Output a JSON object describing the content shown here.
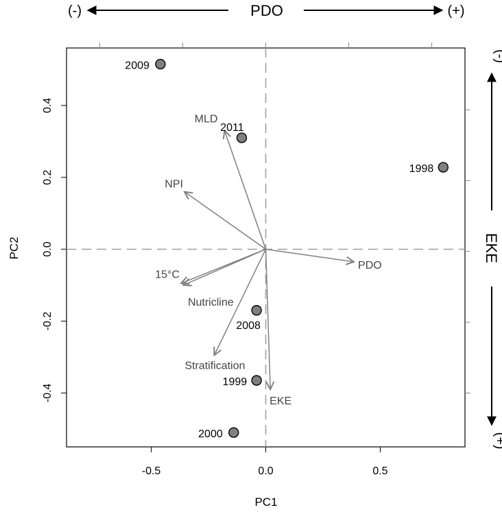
{
  "chart_data": {
    "type": "scatter",
    "title": "",
    "xlabel": "PC1",
    "ylabel": "PC2",
    "xlim": [
      -0.87,
      0.87
    ],
    "ylim": [
      -0.55,
      0.56
    ],
    "x_ticks": [
      -0.5,
      0.0,
      0.5
    ],
    "x_tick_labels": [
      "-0.5",
      "0.0",
      "0.5"
    ],
    "y_ticks": [
      -0.4,
      -0.2,
      0.0,
      0.2,
      0.4
    ],
    "y_tick_labels": [
      "-0.4",
      "-0.2",
      "0.0",
      "0.2",
      "0.4"
    ],
    "top_axis": {
      "label": "PDO",
      "neg_label": "(-)",
      "pos_label": "(+)",
      "ticks": [
        -0.8,
        -0.4,
        0.0,
        0.4,
        0.8
      ]
    },
    "right_axis": {
      "label": "EKE",
      "neg_label": "(-)",
      "pos_label": "(+)",
      "ticks": [
        0.4,
        0.2,
        0.0,
        -0.2,
        -0.4
      ]
    },
    "reference_lines": {
      "x": 0,
      "y": 0,
      "style": "dashed"
    },
    "points": [
      {
        "label": "2009",
        "x": -0.46,
        "y": 0.515
      },
      {
        "label": "2011",
        "x": -0.105,
        "y": 0.31
      },
      {
        "label": "1998",
        "x": 0.775,
        "y": 0.228
      },
      {
        "label": "2008",
        "x": -0.04,
        "y": -0.17
      },
      {
        "label": "1999",
        "x": -0.04,
        "y": -0.365
      },
      {
        "label": "2000",
        "x": -0.14,
        "y": -0.51
      }
    ],
    "vectors": [
      {
        "label": "MLD",
        "x": -0.18,
        "y": 0.33
      },
      {
        "label": "NPI",
        "x": -0.355,
        "y": 0.16
      },
      {
        "label": "PDO",
        "x": 0.385,
        "y": -0.035
      },
      {
        "label": "15°C",
        "x": -0.37,
        "y": -0.095
      },
      {
        "label": "Nutricline",
        "x": -0.36,
        "y": -0.1
      },
      {
        "label": "Stratification",
        "x": -0.225,
        "y": -0.295
      },
      {
        "label": "EKE",
        "x": 0.02,
        "y": -0.39
      }
    ],
    "colors": {
      "point_fill": "#808080",
      "vector": "#808080",
      "reference": "#a0a0a0"
    }
  }
}
